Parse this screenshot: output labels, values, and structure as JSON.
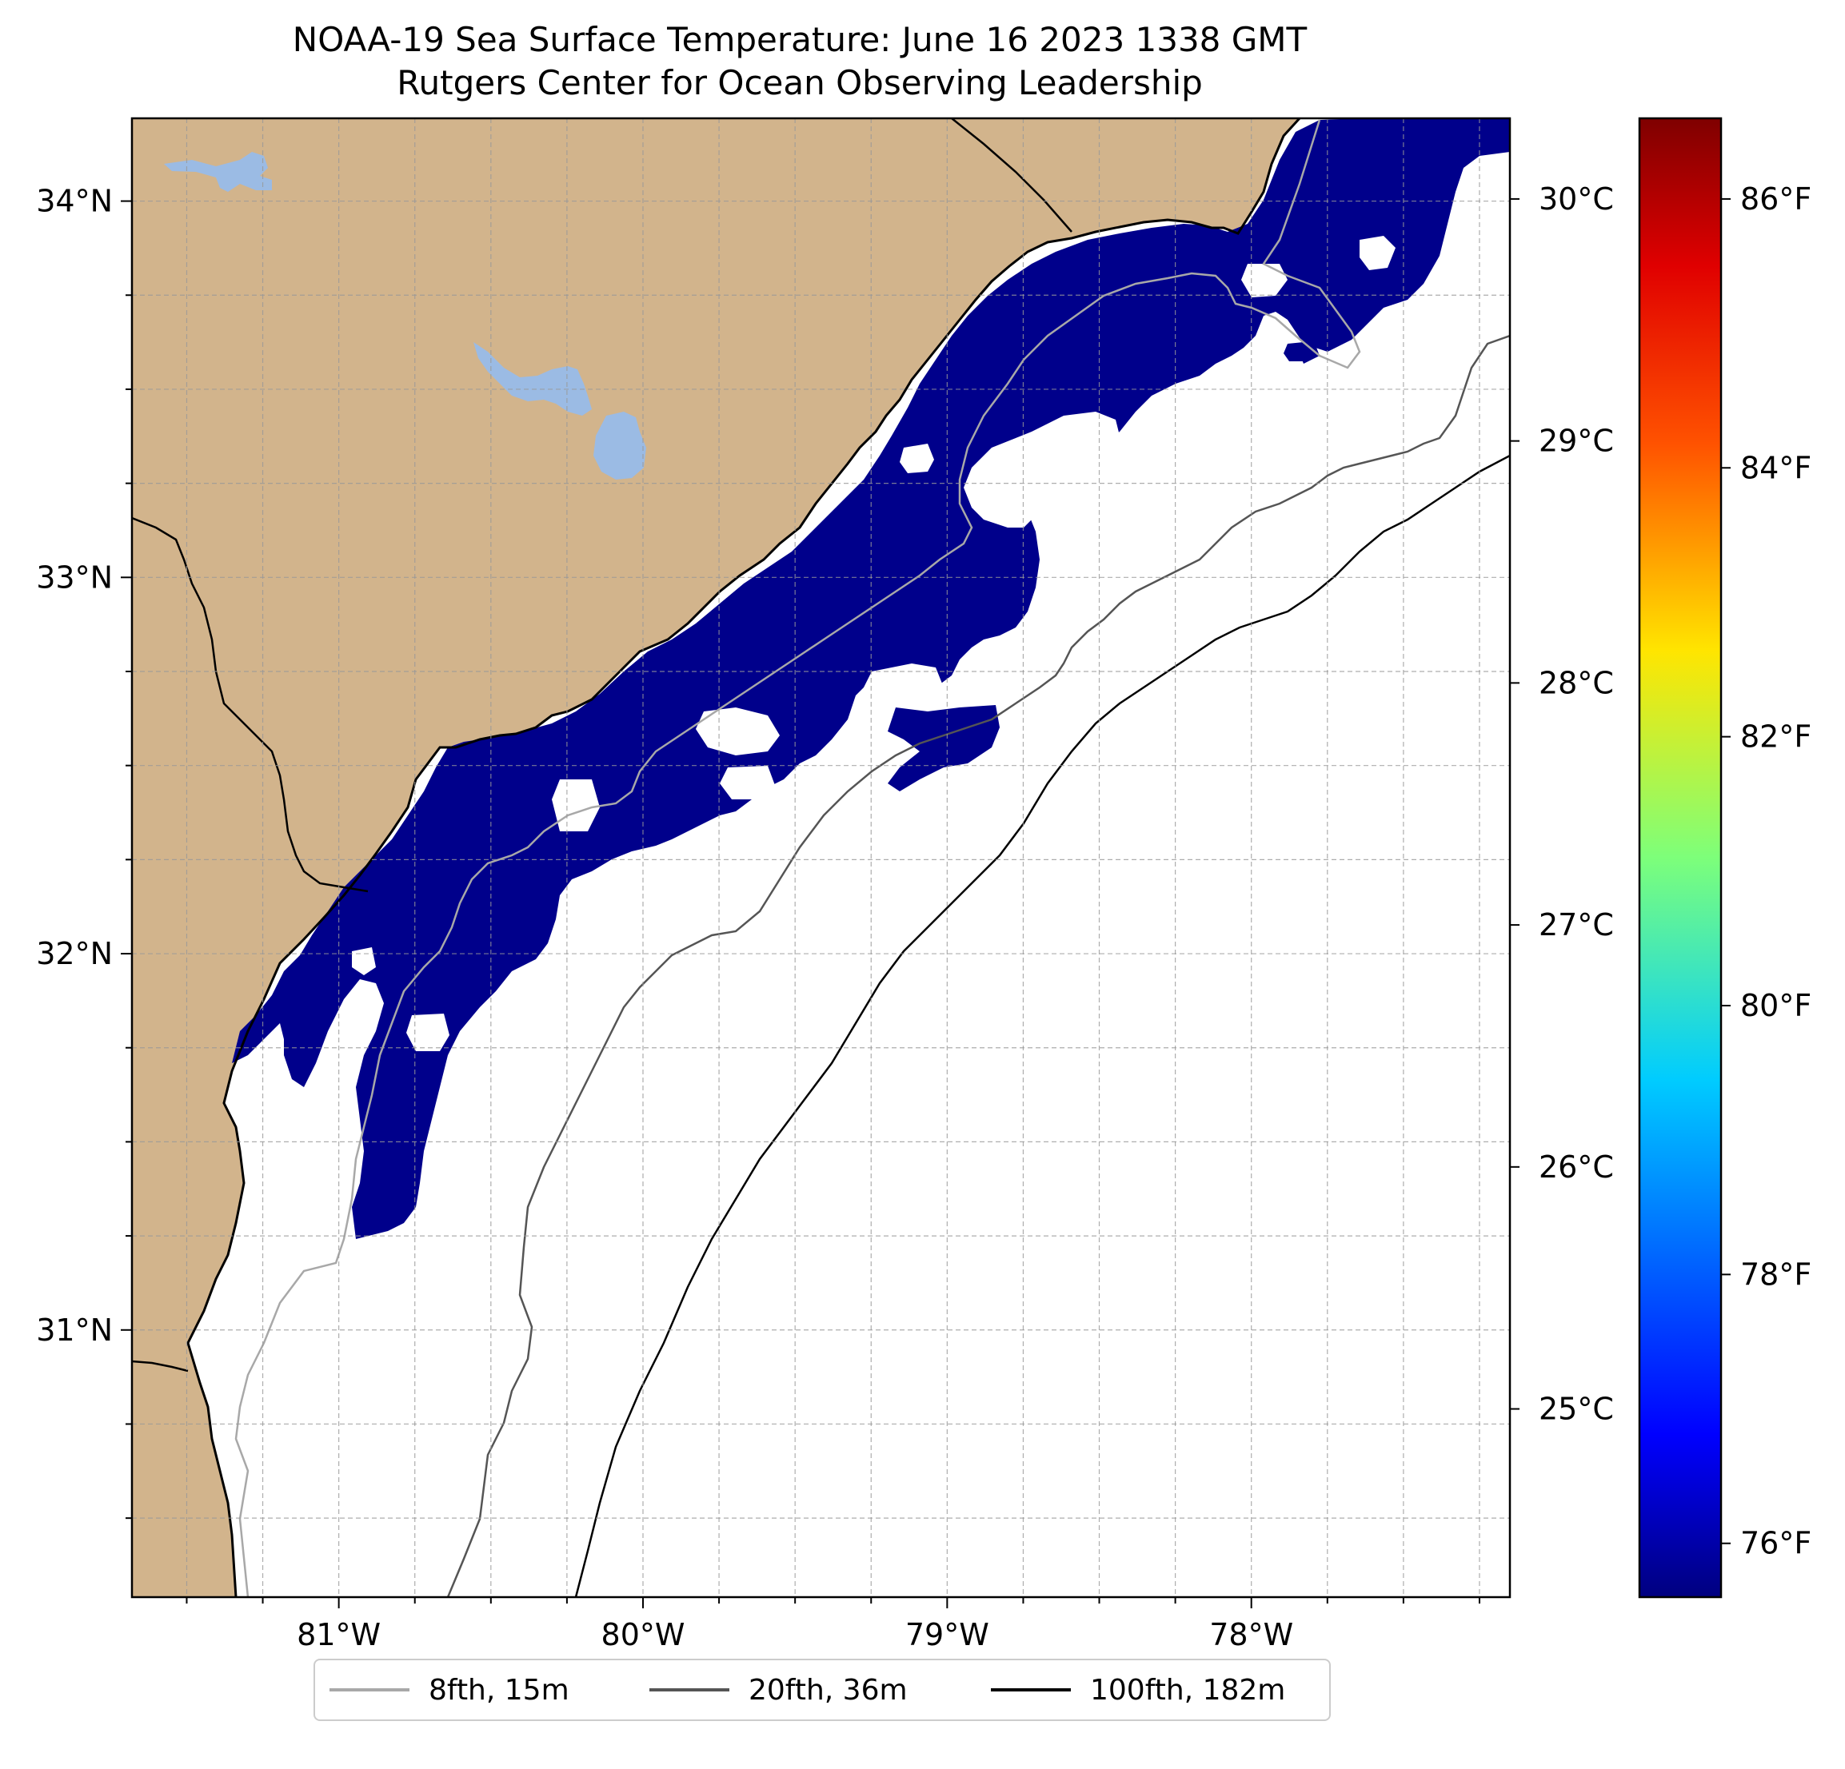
{
  "title": {
    "line1": "NOAA-19 Sea Surface Temperature: June 16 2023 1338 GMT",
    "line2": "Rutgers Center for Ocean Observing Leadership"
  },
  "map": {
    "lon_range": [
      -81.68,
      -77.15
    ],
    "lat_range": [
      30.29,
      34.22
    ],
    "lon_ticks": [
      {
        "value": -81,
        "label": "81°W"
      },
      {
        "value": -80,
        "label": "80°W"
      },
      {
        "value": -79,
        "label": "79°W"
      },
      {
        "value": -78,
        "label": "78°W"
      }
    ],
    "lat_ticks": [
      {
        "value": 31,
        "label": "31°N"
      },
      {
        "value": 32,
        "label": "32°N"
      },
      {
        "value": 33,
        "label": "33°N"
      },
      {
        "value": 34,
        "label": "34°N"
      }
    ],
    "gridlines": "dashed",
    "colors": {
      "land": "#d2b48c",
      "lakes": "#9bbbe4",
      "sst_cold": "#00008b",
      "ocean_no_data": "#ffffff"
    }
  },
  "colorbar": {
    "colormap": "jet",
    "celsius_ticks": [
      {
        "value": 25,
        "label": "25°C"
      },
      {
        "value": 26,
        "label": "26°C"
      },
      {
        "value": 27,
        "label": "27°C"
      },
      {
        "value": 28,
        "label": "28°C"
      },
      {
        "value": 29,
        "label": "29°C"
      },
      {
        "value": 30,
        "label": "30°C"
      }
    ],
    "fahrenheit_ticks": [
      {
        "value": 76,
        "label": "76°F"
      },
      {
        "value": 78,
        "label": "78°F"
      },
      {
        "value": 80,
        "label": "80°F"
      },
      {
        "value": 82,
        "label": "82°F"
      },
      {
        "value": 84,
        "label": "84°F"
      },
      {
        "value": 86,
        "label": "86°F"
      }
    ],
    "range_f": [
      75.6,
      86.6
    ]
  },
  "legend": {
    "items": [
      {
        "label": "8fth, 15m",
        "color": "#a8a8a8"
      },
      {
        "label": "20fth, 36m",
        "color": "#555555"
      },
      {
        "label": "100fth, 182m",
        "color": "#000000"
      }
    ]
  }
}
